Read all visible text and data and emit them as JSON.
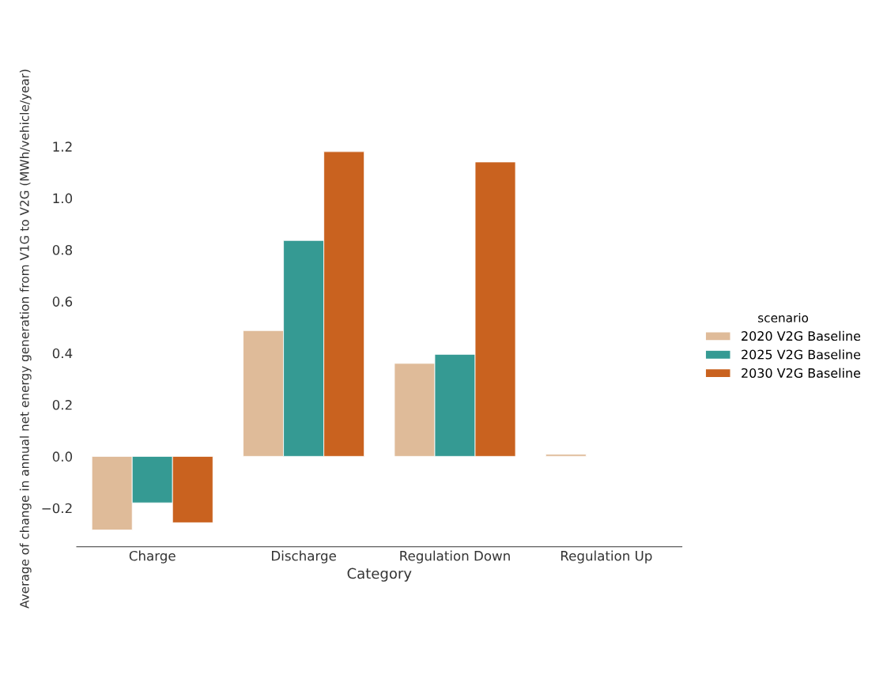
{
  "chart_data": {
    "type": "bar",
    "xlabel": "Category",
    "ylabel": "Average of change in annual net energy generation from V1G to V2G (MWh/vehicle/year)",
    "legend_title": "scenario",
    "categories": [
      "Charge",
      "Discharge",
      "Regulation Down",
      "Regulation Up"
    ],
    "series": [
      {
        "name": "2020 V2G Baseline",
        "color": "#dfbb99",
        "values": [
          -0.285,
          0.487,
          0.36,
          0.008
        ]
      },
      {
        "name": "2025 V2G Baseline",
        "color": "#359a93",
        "values": [
          -0.18,
          0.836,
          0.395,
          null
        ]
      },
      {
        "name": "2030 V2G Baseline",
        "color": "#c9621f",
        "values": [
          -0.257,
          1.18,
          1.14,
          null
        ]
      }
    ],
    "ylim": [
      -0.35,
      1.2
    ],
    "yticks": [
      {
        "value": -0.2,
        "label": "−0.2"
      },
      {
        "value": 0,
        "label": "0.0"
      },
      {
        "value": 0.2,
        "label": "0.2"
      },
      {
        "value": 0.4,
        "label": "0.4"
      },
      {
        "value": 0.6,
        "label": "0.6"
      },
      {
        "value": 0.8,
        "label": "0.8"
      },
      {
        "value": 1.0,
        "label": "1.0"
      },
      {
        "value": 1.2,
        "label": "1.2"
      }
    ],
    "legend": "right",
    "grid": false
  }
}
